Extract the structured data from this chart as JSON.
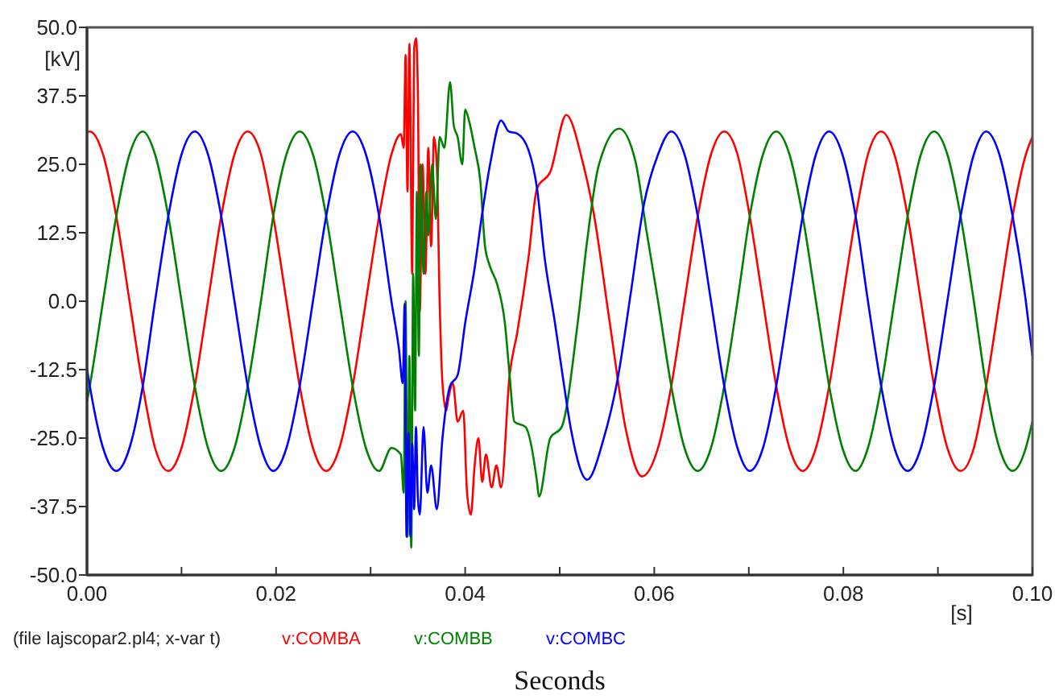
{
  "chart_data": {
    "type": "line",
    "xlabel": "[s]",
    "ylabel": "[kV]",
    "xlim": [
      0,
      0.1
    ],
    "ylim": [
      -50,
      50
    ],
    "xticks": [
      {
        "value": 0,
        "label": "0.00"
      },
      {
        "value": 0.01,
        "label": null
      },
      {
        "value": 0.02,
        "label": "0.02"
      },
      {
        "value": 0.03,
        "label": null
      },
      {
        "value": 0.04,
        "label": "0.04"
      },
      {
        "value": 0.05,
        "label": null
      },
      {
        "value": 0.06,
        "label": "0.06"
      },
      {
        "value": 0.07,
        "label": null
      },
      {
        "value": 0.08,
        "label": "0.08"
      },
      {
        "value": 0.09,
        "label": null
      },
      {
        "value": 0.1,
        "label": "0.10"
      }
    ],
    "yticks": [
      {
        "value": -50,
        "label": "-50.0"
      },
      {
        "value": -37.5,
        "label": "-37.5"
      },
      {
        "value": -25,
        "label": "-25.0"
      },
      {
        "value": -12.5,
        "label": "-12.5"
      },
      {
        "value": 0,
        "label": "0.0"
      },
      {
        "value": 12.5,
        "label": "12.5"
      },
      {
        "value": 25,
        "label": "25.0"
      },
      {
        "value": 37.5,
        "label": "37.5"
      },
      {
        "value": 50,
        "label": "50.0"
      }
    ],
    "legend": "bottom",
    "grid": false,
    "annotations": [
      "(file lajscopar2.pl4; x-var t)",
      "Seconds"
    ],
    "series": [
      {
        "name": "v:COMBA",
        "color": "#ff0000",
        "x": [
          0,
          0.0003,
          0.0017,
          0.0031,
          0.0045,
          0.0059,
          0.0072,
          0.0086,
          0.01,
          0.0114,
          0.0128,
          0.0142,
          0.0156,
          0.017,
          0.0184,
          0.0197,
          0.0211,
          0.0225,
          0.0239,
          0.0253,
          0.0267,
          0.0281,
          0.0295,
          0.0309,
          0.0322,
          0.0332,
          0.0335,
          0.0337,
          0.0339,
          0.0341,
          0.0344,
          0.0346,
          0.0348,
          0.035,
          0.0352,
          0.0355,
          0.0358,
          0.0361,
          0.0364,
          0.0367,
          0.037,
          0.0373,
          0.0376,
          0.038,
          0.0382,
          0.0387,
          0.0392,
          0.0398,
          0.0402,
          0.0406,
          0.041,
          0.0414,
          0.0418,
          0.0422,
          0.0428,
          0.0433,
          0.0438,
          0.0447,
          0.0455,
          0.0467,
          0.0476,
          0.049,
          0.0507,
          0.0524,
          0.0536,
          0.0553,
          0.057,
          0.0587,
          0.0604,
          0.0618,
          0.0632,
          0.0646,
          0.066,
          0.0674,
          0.0688,
          0.0701,
          0.0715,
          0.0729,
          0.0743,
          0.0757,
          0.0771,
          0.0785,
          0.0799,
          0.0813,
          0.0826,
          0.084,
          0.0854,
          0.0868,
          0.0882,
          0.0896,
          0.091,
          0.0924,
          0.0938,
          0.0951,
          0.0965,
          0.0979,
          0.0993,
          0.1
        ],
        "values": [
          30.8,
          31,
          26.8,
          15.5,
          0,
          -15.5,
          -26.8,
          -31,
          -26.8,
          -15.5,
          0,
          15.5,
          26.8,
          31,
          26.8,
          15.5,
          0,
          -15.5,
          -26.8,
          -31,
          -26.8,
          -15.5,
          0,
          15.5,
          26.8,
          30.5,
          28,
          45,
          20,
          47,
          5,
          46,
          48,
          38,
          -2,
          25,
          5,
          28,
          10,
          30,
          25,
          0,
          -15,
          -20,
          -18,
          -15,
          -22,
          -20,
          -35,
          -39,
          -30,
          -25,
          -33,
          -28,
          -34,
          -30,
          -34,
          -13.5,
          -5.8,
          8,
          20.6,
          23.6,
          34,
          25.6,
          16,
          -4,
          -23.5,
          -32,
          -26.8,
          -15.5,
          0,
          15.5,
          26.8,
          31,
          26.8,
          15.5,
          0,
          -15.5,
          -26.8,
          -31,
          -26.8,
          -15.5,
          0,
          15.5,
          26.8,
          31,
          26.8,
          15.5,
          0,
          -15.5,
          -26.8,
          -31,
          -26.8,
          -15.5,
          0,
          15.5,
          26.8,
          30
        ]
      },
      {
        "name": "v:COMBB",
        "color": "#008000",
        "x": [
          0,
          0.0003,
          0.0017,
          0.0031,
          0.0045,
          0.0059,
          0.0072,
          0.0086,
          0.01,
          0.0114,
          0.0128,
          0.0142,
          0.0156,
          0.017,
          0.0184,
          0.0197,
          0.0211,
          0.0225,
          0.0239,
          0.0253,
          0.0267,
          0.0281,
          0.0295,
          0.0309,
          0.0322,
          0.0332,
          0.0335,
          0.0337,
          0.0339,
          0.0341,
          0.0343,
          0.0345,
          0.0347,
          0.0349,
          0.0351,
          0.0353,
          0.0356,
          0.0359,
          0.0361,
          0.0365,
          0.0369,
          0.0373,
          0.0378,
          0.0384,
          0.0388,
          0.0392,
          0.0397,
          0.04,
          0.0404,
          0.041,
          0.0416,
          0.0421,
          0.0426,
          0.0434,
          0.0442,
          0.0447,
          0.0452,
          0.0464,
          0.0476,
          0.0478,
          0.049,
          0.0502,
          0.0519,
          0.0529,
          0.0541,
          0.0563,
          0.058,
          0.0592,
          0.0604,
          0.0618,
          0.0632,
          0.0646,
          0.066,
          0.0674,
          0.0688,
          0.0701,
          0.0715,
          0.0729,
          0.0743,
          0.0757,
          0.0771,
          0.0785,
          0.0799,
          0.0813,
          0.0826,
          0.084,
          0.0854,
          0.0868,
          0.0882,
          0.0896,
          0.091,
          0.0924,
          0.0938,
          0.0951,
          0.0965,
          0.0979,
          0.0993,
          0.1
        ],
        "values": [
          -18.4,
          -15.5,
          0,
          15.5,
          26.8,
          31,
          26.8,
          15.5,
          0,
          -15.5,
          -26.8,
          -31,
          -26.8,
          -15.5,
          0,
          15.5,
          26.8,
          31,
          26.8,
          15.5,
          0,
          -15.5,
          -26.8,
          -31,
          -26.8,
          -28,
          -35,
          0,
          -43,
          -10,
          -45,
          5,
          -20,
          20,
          -10,
          25,
          5,
          20,
          12,
          25,
          15,
          30,
          28,
          40,
          32,
          30,
          25,
          35,
          33,
          28,
          22,
          10,
          6.5,
          3,
          -4,
          -13.5,
          -22,
          -23,
          -33,
          -35.7,
          -25,
          -23,
          -4,
          11,
          24.6,
          31.5,
          25.6,
          12.6,
          0,
          -15.5,
          -26.8,
          -31,
          -26.8,
          -15.5,
          0,
          15.5,
          26.8,
          31,
          26.8,
          15.5,
          0,
          -15.5,
          -26.8,
          -31,
          -26.8,
          -15.5,
          0,
          15.5,
          26.8,
          31,
          26.8,
          15.5,
          0,
          -15.5,
          -26.8,
          -31,
          -26.8,
          -21.9
        ]
      },
      {
        "name": "v:COMBC",
        "color": "#0000ff",
        "x": [
          0,
          0.0003,
          0.0017,
          0.0031,
          0.0045,
          0.0059,
          0.0072,
          0.0086,
          0.01,
          0.0114,
          0.0128,
          0.0142,
          0.0156,
          0.017,
          0.0184,
          0.0197,
          0.0211,
          0.0225,
          0.0239,
          0.0253,
          0.0267,
          0.0281,
          0.0295,
          0.0309,
          0.0322,
          0.033,
          0.0334,
          0.0336,
          0.0338,
          0.034,
          0.0342,
          0.0344,
          0.0346,
          0.0348,
          0.035,
          0.0352,
          0.0356,
          0.036,
          0.0364,
          0.037,
          0.0376,
          0.0384,
          0.0392,
          0.04,
          0.041,
          0.0418,
          0.0427,
          0.0438,
          0.0446,
          0.0455,
          0.0467,
          0.0476,
          0.0484,
          0.0495,
          0.0503,
          0.0512,
          0.0529,
          0.0546,
          0.0562,
          0.0575,
          0.0589,
          0.0604,
          0.0618,
          0.0632,
          0.0646,
          0.066,
          0.0674,
          0.0688,
          0.0701,
          0.0715,
          0.0729,
          0.0743,
          0.0757,
          0.0771,
          0.0785,
          0.0799,
          0.0813,
          0.0826,
          0.084,
          0.0854,
          0.0868,
          0.0882,
          0.0896,
          0.091,
          0.0924,
          0.0938,
          0.0951,
          0.0965,
          0.0979,
          0.0993,
          0.1
        ],
        "values": [
          -12.4,
          -15.5,
          -26.8,
          -31,
          -26.8,
          -15.5,
          0,
          15.5,
          26.8,
          31,
          26.8,
          15.5,
          0,
          -15.5,
          -26.8,
          -31,
          -26.8,
          -15.5,
          0,
          15.5,
          26.8,
          31,
          26.8,
          15.5,
          0,
          -8.8,
          -15,
          -0.5,
          -43,
          -24,
          -43,
          -26,
          -38,
          -23,
          -36,
          -39,
          -23,
          -35,
          -30,
          -38,
          -25,
          -15.5,
          -13.5,
          -4,
          6,
          16,
          25.6,
          33,
          31,
          30.6,
          27.6,
          20.6,
          8,
          -4,
          -13.5,
          -23.5,
          -32.6,
          -25.4,
          -13.5,
          1.3,
          17.6,
          26.8,
          31,
          26.8,
          15.5,
          0,
          -15.5,
          -26.8,
          -31,
          -26.8,
          -15.5,
          0,
          15.5,
          26.8,
          31,
          26.8,
          15.5,
          0,
          -15.5,
          -26.8,
          -31,
          -26.8,
          -15.5,
          0,
          15.5,
          26.8,
          31,
          26.8,
          15.5,
          0,
          -10
        ]
      }
    ]
  }
}
